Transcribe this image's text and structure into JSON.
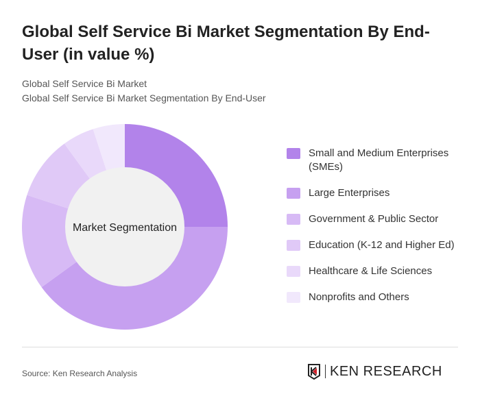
{
  "title": "Global Self Service Bi Market Segmentation By End-User (in value %)",
  "subtitle1": "Global Self Service Bi Market",
  "subtitle2": "Global Self Service Bi Market Segmentation By End-User",
  "source": "Source: Ken Research Analysis",
  "logo_text": "KEN RESEARCH",
  "chart_data": {
    "type": "pie",
    "donut": true,
    "center_label": "Market Segmentation",
    "legend_position": "right",
    "categories": [
      "Small and Medium Enterprises (SMEs)",
      "Large Enterprises",
      "Government & Public Sector",
      "Education (K-12 and Higher Ed)",
      "Healthcare & Life Sciences",
      "Nonprofits and Others"
    ],
    "values": [
      25,
      40,
      15,
      10,
      5,
      5
    ],
    "colors": [
      "#b283ea",
      "#c6a0f0",
      "#d7baf5",
      "#e0c9f7",
      "#e9d9fa",
      "#f1e8fc"
    ]
  }
}
